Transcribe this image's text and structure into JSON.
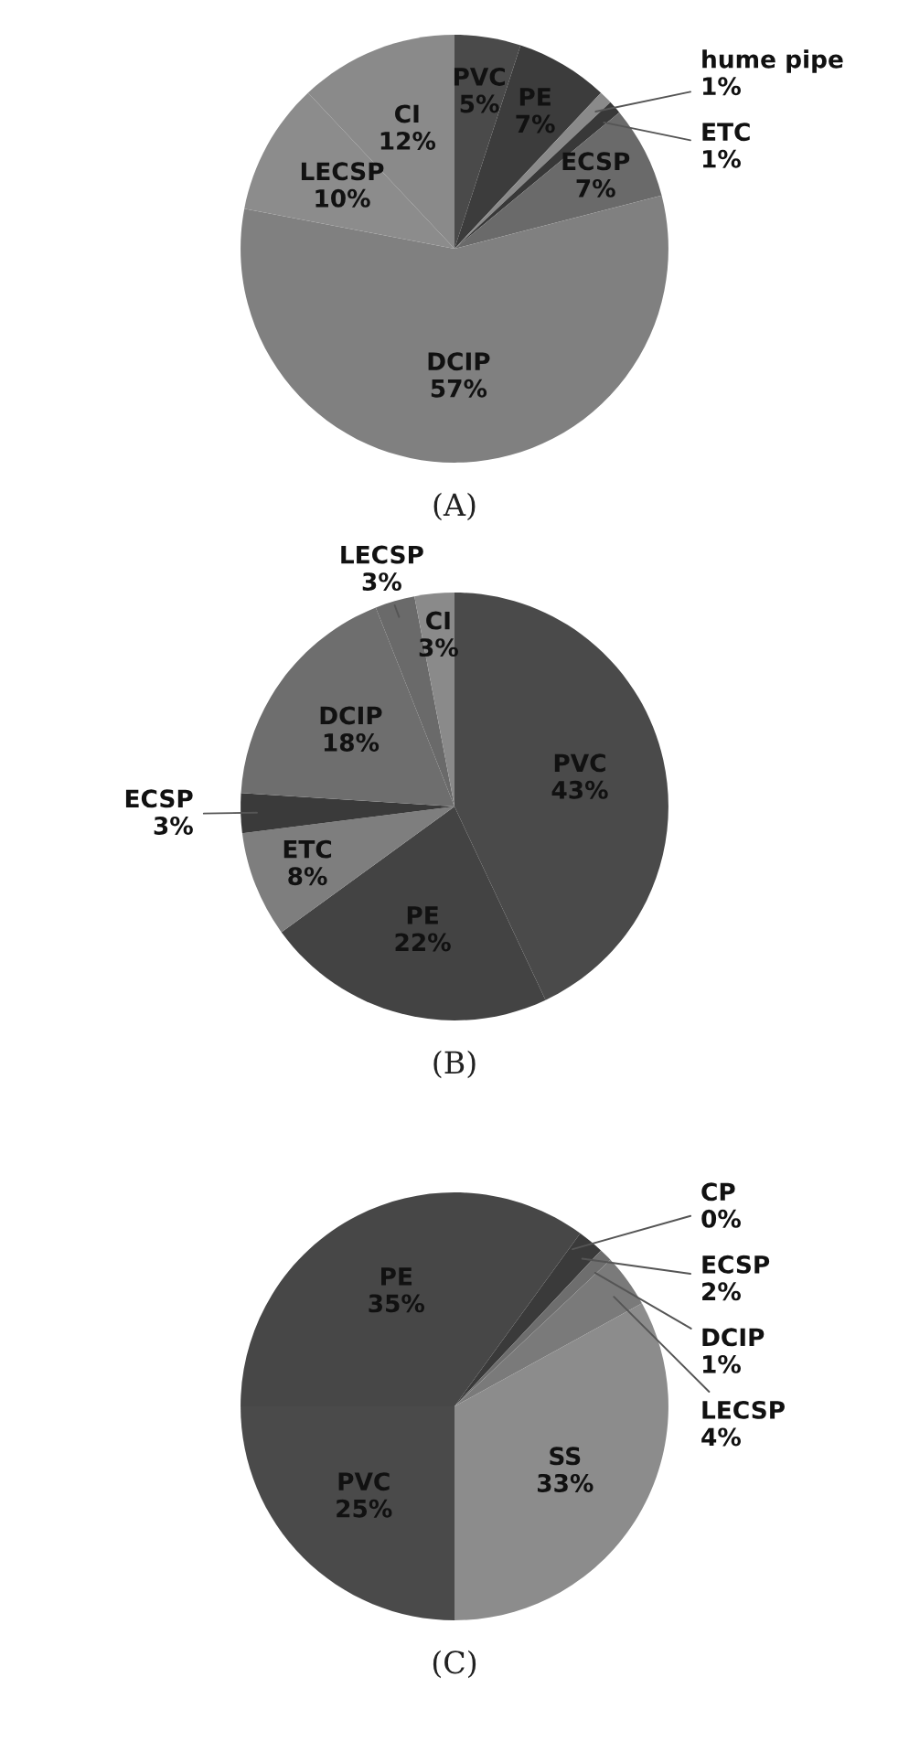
{
  "chart_data": [
    {
      "type": "pie",
      "title": "(A)",
      "categories": [
        "PVC",
        "PE",
        "hume pipe",
        "ETC",
        "ECSP",
        "DCIP",
        "LECSP",
        "CI"
      ],
      "values": [
        5,
        7,
        1,
        1,
        7,
        57,
        10,
        12
      ],
      "value_labels": [
        "5%",
        "7%",
        "1%",
        "1%",
        "7%",
        "57%",
        "10%",
        "12%"
      ],
      "colors": [
        "#4a4a4a",
        "#3c3c3c",
        "#8a8a8a",
        "#383838",
        "#6a6a6a",
        "#808080",
        "#8c8c8c",
        "#8a8a8a"
      ]
    },
    {
      "type": "pie",
      "title": "(B)",
      "categories": [
        "PVC",
        "PE",
        "ETC",
        "ECSP",
        "DCIP",
        "LECSP",
        "CI"
      ],
      "values": [
        43,
        22,
        8,
        3,
        18,
        3,
        3
      ],
      "value_labels": [
        "43%",
        "22%",
        "8%",
        "3%",
        "18%",
        "3%",
        "3%"
      ],
      "colors": [
        "#4a4a4a",
        "#434343",
        "#7e7e7e",
        "#3a3a3a",
        "#6e6e6e",
        "#6a6a6a",
        "#8a8a8a"
      ]
    },
    {
      "type": "pie",
      "title": "(C)",
      "categories": [
        "PVC",
        "PE",
        "CP",
        "ECSP",
        "DCIP",
        "LECSP",
        "SS"
      ],
      "values": [
        25,
        35,
        0,
        2,
        1,
        4,
        33
      ],
      "value_labels": [
        "25%",
        "35%",
        "0%",
        "2%",
        "1%",
        "4%",
        "33%"
      ],
      "colors": [
        "#4a4a4a",
        "#474747",
        "#3c3c3c",
        "#3a3a3a",
        "#6e6e6e",
        "#7a7a7a",
        "#8c8c8c"
      ]
    }
  ]
}
